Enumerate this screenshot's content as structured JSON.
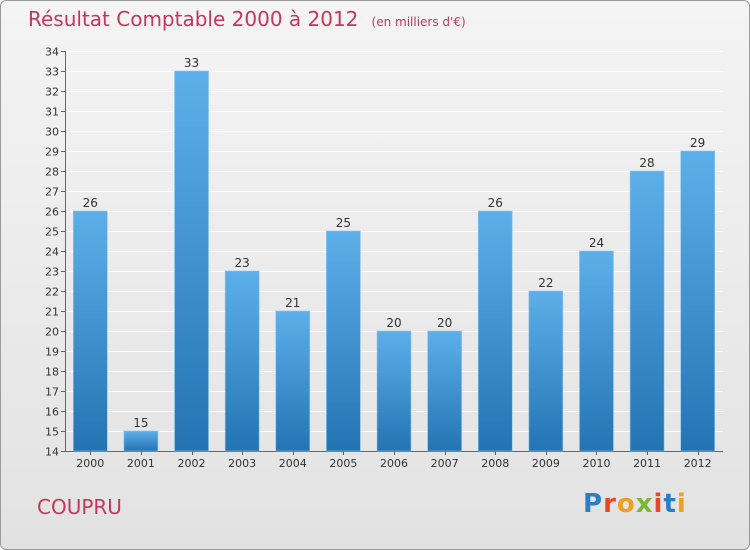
{
  "header": {
    "title": "Résultat Comptable 2000 à 2012",
    "subtitle": "(en milliers d'€)"
  },
  "footer": {
    "commune": "COUPRU",
    "logo": "Proxiti",
    "logo_colors": [
      "#2a7fc4",
      "#e8482a",
      "#f0a020",
      "#7ab830",
      "#e8482a",
      "#2a7fc4",
      "#f0a020"
    ]
  },
  "colors": {
    "title": "#c2375f",
    "bar_light": "#5dafea",
    "bar_dark": "#2474b3"
  },
  "chart_data": {
    "type": "bar",
    "title": "Résultat Comptable 2000 à 2012",
    "subtitle": "(en milliers d'€)",
    "xlabel": "",
    "ylabel": "",
    "categories": [
      "2000",
      "2001",
      "2002",
      "2003",
      "2004",
      "2005",
      "2006",
      "2007",
      "2008",
      "2009",
      "2010",
      "2011",
      "2012"
    ],
    "values": [
      26,
      15,
      33,
      23,
      21,
      25,
      20,
      20,
      26,
      22,
      24,
      28,
      29
    ],
    "ylim": [
      14,
      34
    ],
    "yticks": [
      14,
      15,
      16,
      17,
      18,
      19,
      20,
      21,
      22,
      23,
      24,
      25,
      26,
      27,
      28,
      29,
      30,
      31,
      32,
      33,
      34
    ],
    "grid": true,
    "legend": "none"
  }
}
